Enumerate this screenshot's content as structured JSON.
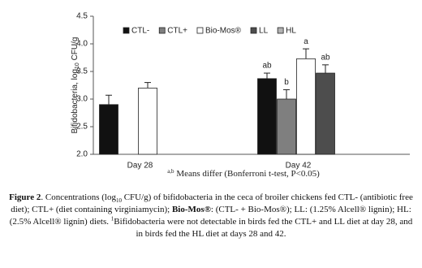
{
  "chart_data": {
    "type": "bar",
    "y_label": {
      "text": "Bifidobacteria, log",
      "sub": "10",
      "suffix": " CFU/g"
    },
    "categories": [
      "Day 28",
      "Day 42"
    ],
    "series": [
      {
        "name": "CTL-",
        "color": "#111111",
        "values": [
          2.9,
          3.37
        ],
        "errors": [
          0.17,
          0.1
        ],
        "letters": [
          null,
          "ab"
        ]
      },
      {
        "name": "CTL+",
        "color": "#7f7f7f",
        "values": [
          null,
          3.0
        ],
        "errors": [
          null,
          0.17
        ],
        "letters": [
          null,
          "b"
        ]
      },
      {
        "name": "Bio-Mos®",
        "color": "#ffffff",
        "values": [
          3.2,
          3.73
        ],
        "errors": [
          0.1,
          0.18
        ],
        "letters": [
          null,
          "a"
        ]
      },
      {
        "name": "LL",
        "color": "#4d4d4d",
        "values": [
          null,
          3.47
        ],
        "errors": [
          null,
          0.15
        ],
        "letters": [
          null,
          "ab"
        ]
      },
      {
        "name": "HL",
        "color": "#b3b3b3",
        "values": [
          null,
          null
        ],
        "errors": [
          null,
          null
        ],
        "letters": [
          null,
          null
        ]
      }
    ],
    "ylim": [
      2,
      4.5
    ],
    "yticks": [
      {
        "value": 2,
        "label": "2.0"
      },
      {
        "value": 2.5,
        "label": "2.5"
      },
      {
        "value": 3,
        "label": "3.0"
      },
      {
        "value": 3.5,
        "label": "3.5"
      },
      {
        "value": 4,
        "label": "4.0"
      },
      {
        "value": 4.5,
        "label": "4.5"
      }
    ],
    "legend": "top",
    "footnote": {
      "sup": "a,b",
      "text": " Means differ (Bonferroni t-test, P<0.05)"
    },
    "caption": [
      {
        "text": "Figure 2",
        "style": "b"
      },
      {
        "text": ". Concentrations (log",
        "style": "n"
      },
      {
        "text": "10",
        "style": "sub"
      },
      {
        "text": " CFU/g) of bifidobacteria in the ceca of broiler chickens fed CTL- (antibiotic free diet); CTL+ (diet containing virginiamycin); ",
        "style": "n"
      },
      {
        "text": "Bio-Mos®",
        "style": "b"
      },
      {
        "text": ": (CTL- + Bio-Mos®); LL: (1.25% Alcell® lignin); HL: (2.5% Alcell® lignin) diets. ",
        "style": "n"
      },
      {
        "text": "1",
        "style": "sup"
      },
      {
        "text": "Bifidobacteria were not detectable in birds fed the CTL+ and LL diet at day 28, and in birds fed the HL diet at days 28 and 42.",
        "style": "n"
      }
    ]
  }
}
